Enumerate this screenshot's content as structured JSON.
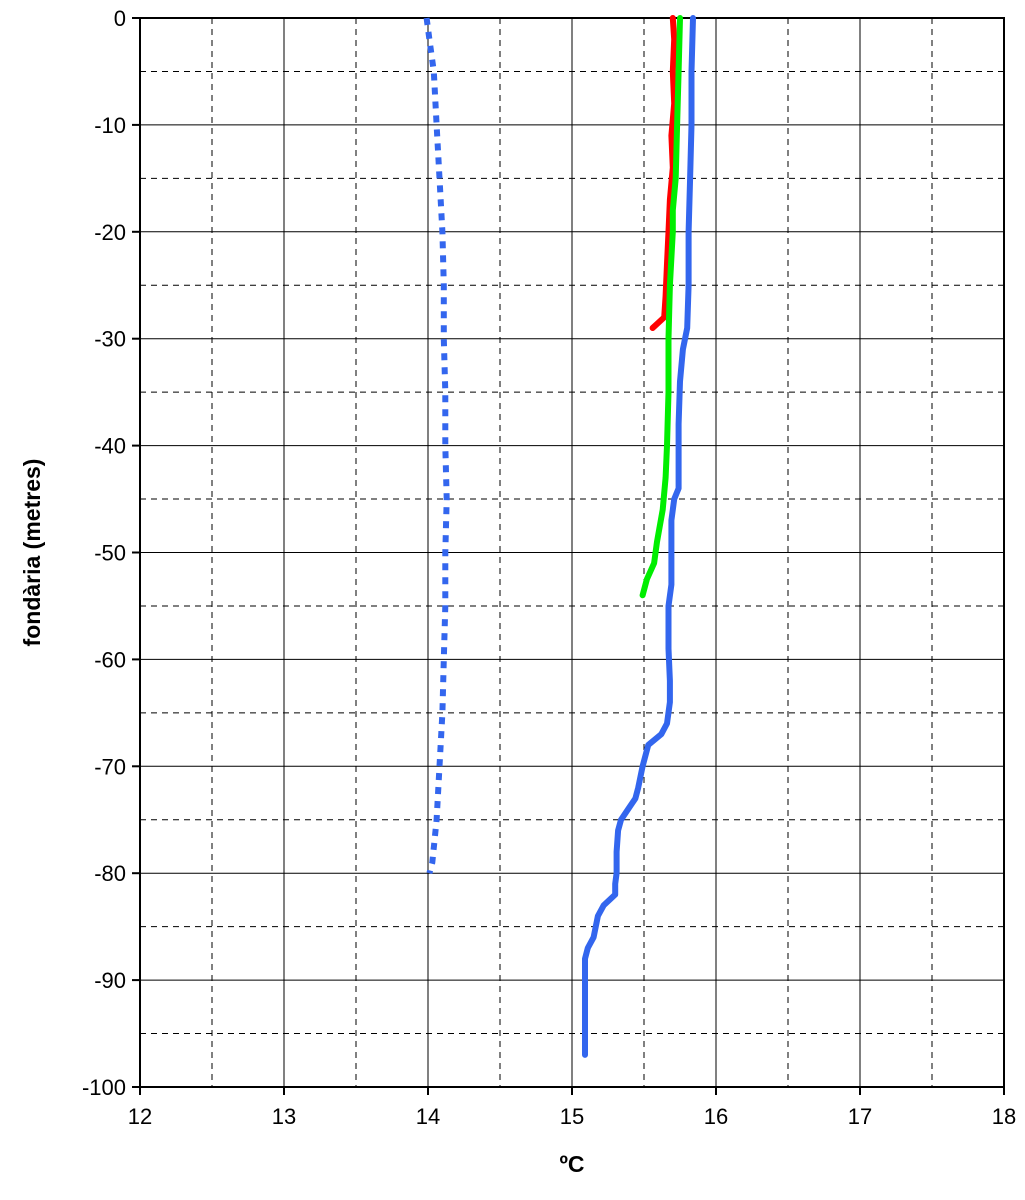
{
  "chart_data": {
    "type": "line",
    "title": "",
    "xlabel": "ºC",
    "ylabel": "fondària (metres)",
    "xlim": [
      12,
      18
    ],
    "ylim": [
      -100,
      0
    ],
    "x_ticks": [
      12,
      13,
      14,
      15,
      16,
      17,
      18
    ],
    "y_ticks": [
      0,
      -10,
      -20,
      -30,
      -40,
      -50,
      -60,
      -70,
      -80,
      -90,
      -100
    ],
    "grid": {
      "major": true,
      "minor_dashed": true,
      "x_minor_step": 0.5,
      "y_minor_step": 5
    },
    "legend": "none",
    "series": [
      {
        "color": "#ff0000",
        "style": "solid",
        "points": [
          [
            15.7,
            0
          ],
          [
            15.71,
            -2
          ],
          [
            15.7,
            -5
          ],
          [
            15.71,
            -8
          ],
          [
            15.69,
            -11
          ],
          [
            15.7,
            -14
          ],
          [
            15.68,
            -17
          ],
          [
            15.67,
            -20
          ],
          [
            15.66,
            -23
          ],
          [
            15.65,
            -26
          ],
          [
            15.64,
            -28
          ],
          [
            15.6,
            -28.5
          ],
          [
            15.56,
            -29
          ]
        ]
      },
      {
        "color": "#00ee00",
        "style": "solid",
        "points": [
          [
            15.75,
            0
          ],
          [
            15.74,
            -5
          ],
          [
            15.73,
            -10
          ],
          [
            15.72,
            -15
          ],
          [
            15.7,
            -18
          ],
          [
            15.7,
            -20
          ],
          [
            15.68,
            -25
          ],
          [
            15.67,
            -30
          ],
          [
            15.67,
            -35
          ],
          [
            15.66,
            -40
          ],
          [
            15.65,
            -43
          ],
          [
            15.63,
            -46
          ],
          [
            15.59,
            -49
          ],
          [
            15.57,
            -51
          ],
          [
            15.52,
            -52.5
          ],
          [
            15.49,
            -54
          ]
        ]
      },
      {
        "color": "#3366ee",
        "style": "solid",
        "points": [
          [
            15.84,
            0
          ],
          [
            15.83,
            -5
          ],
          [
            15.83,
            -10
          ],
          [
            15.82,
            -15
          ],
          [
            15.81,
            -20
          ],
          [
            15.81,
            -25
          ],
          [
            15.8,
            -29
          ],
          [
            15.77,
            -31
          ],
          [
            15.75,
            -34
          ],
          [
            15.74,
            -38
          ],
          [
            15.74,
            -44
          ],
          [
            15.71,
            -45
          ],
          [
            15.69,
            -47
          ],
          [
            15.69,
            -53
          ],
          [
            15.67,
            -55
          ],
          [
            15.67,
            -59
          ],
          [
            15.68,
            -62
          ],
          [
            15.68,
            -64
          ],
          [
            15.66,
            -66
          ],
          [
            15.62,
            -67
          ],
          [
            15.53,
            -68
          ],
          [
            15.49,
            -70
          ],
          [
            15.46,
            -72
          ],
          [
            15.44,
            -73
          ],
          [
            15.39,
            -74
          ],
          [
            15.34,
            -75
          ],
          [
            15.32,
            -76
          ],
          [
            15.31,
            -78
          ],
          [
            15.31,
            -80
          ],
          [
            15.3,
            -81
          ],
          [
            15.3,
            -82
          ],
          [
            15.22,
            -83
          ],
          [
            15.18,
            -84
          ],
          [
            15.15,
            -86
          ],
          [
            15.11,
            -87
          ],
          [
            15.09,
            -88
          ],
          [
            15.09,
            -90
          ],
          [
            15.09,
            -93
          ],
          [
            15.09,
            -95
          ],
          [
            15.09,
            -97
          ]
        ]
      },
      {
        "color": "#3366ee",
        "style": "dotted",
        "points": [
          [
            13.99,
            0
          ],
          [
            14.01,
            -2
          ],
          [
            14.04,
            -5
          ],
          [
            14.06,
            -10
          ],
          [
            14.08,
            -15
          ],
          [
            14.1,
            -20
          ],
          [
            14.11,
            -25
          ],
          [
            14.11,
            -30
          ],
          [
            14.12,
            -35
          ],
          [
            14.12,
            -40
          ],
          [
            14.13,
            -45
          ],
          [
            14.12,
            -50
          ],
          [
            14.12,
            -55
          ],
          [
            14.11,
            -60
          ],
          [
            14.1,
            -65
          ],
          [
            14.08,
            -70
          ],
          [
            14.06,
            -75
          ],
          [
            14.03,
            -79
          ],
          [
            14.01,
            -80
          ]
        ]
      }
    ]
  }
}
